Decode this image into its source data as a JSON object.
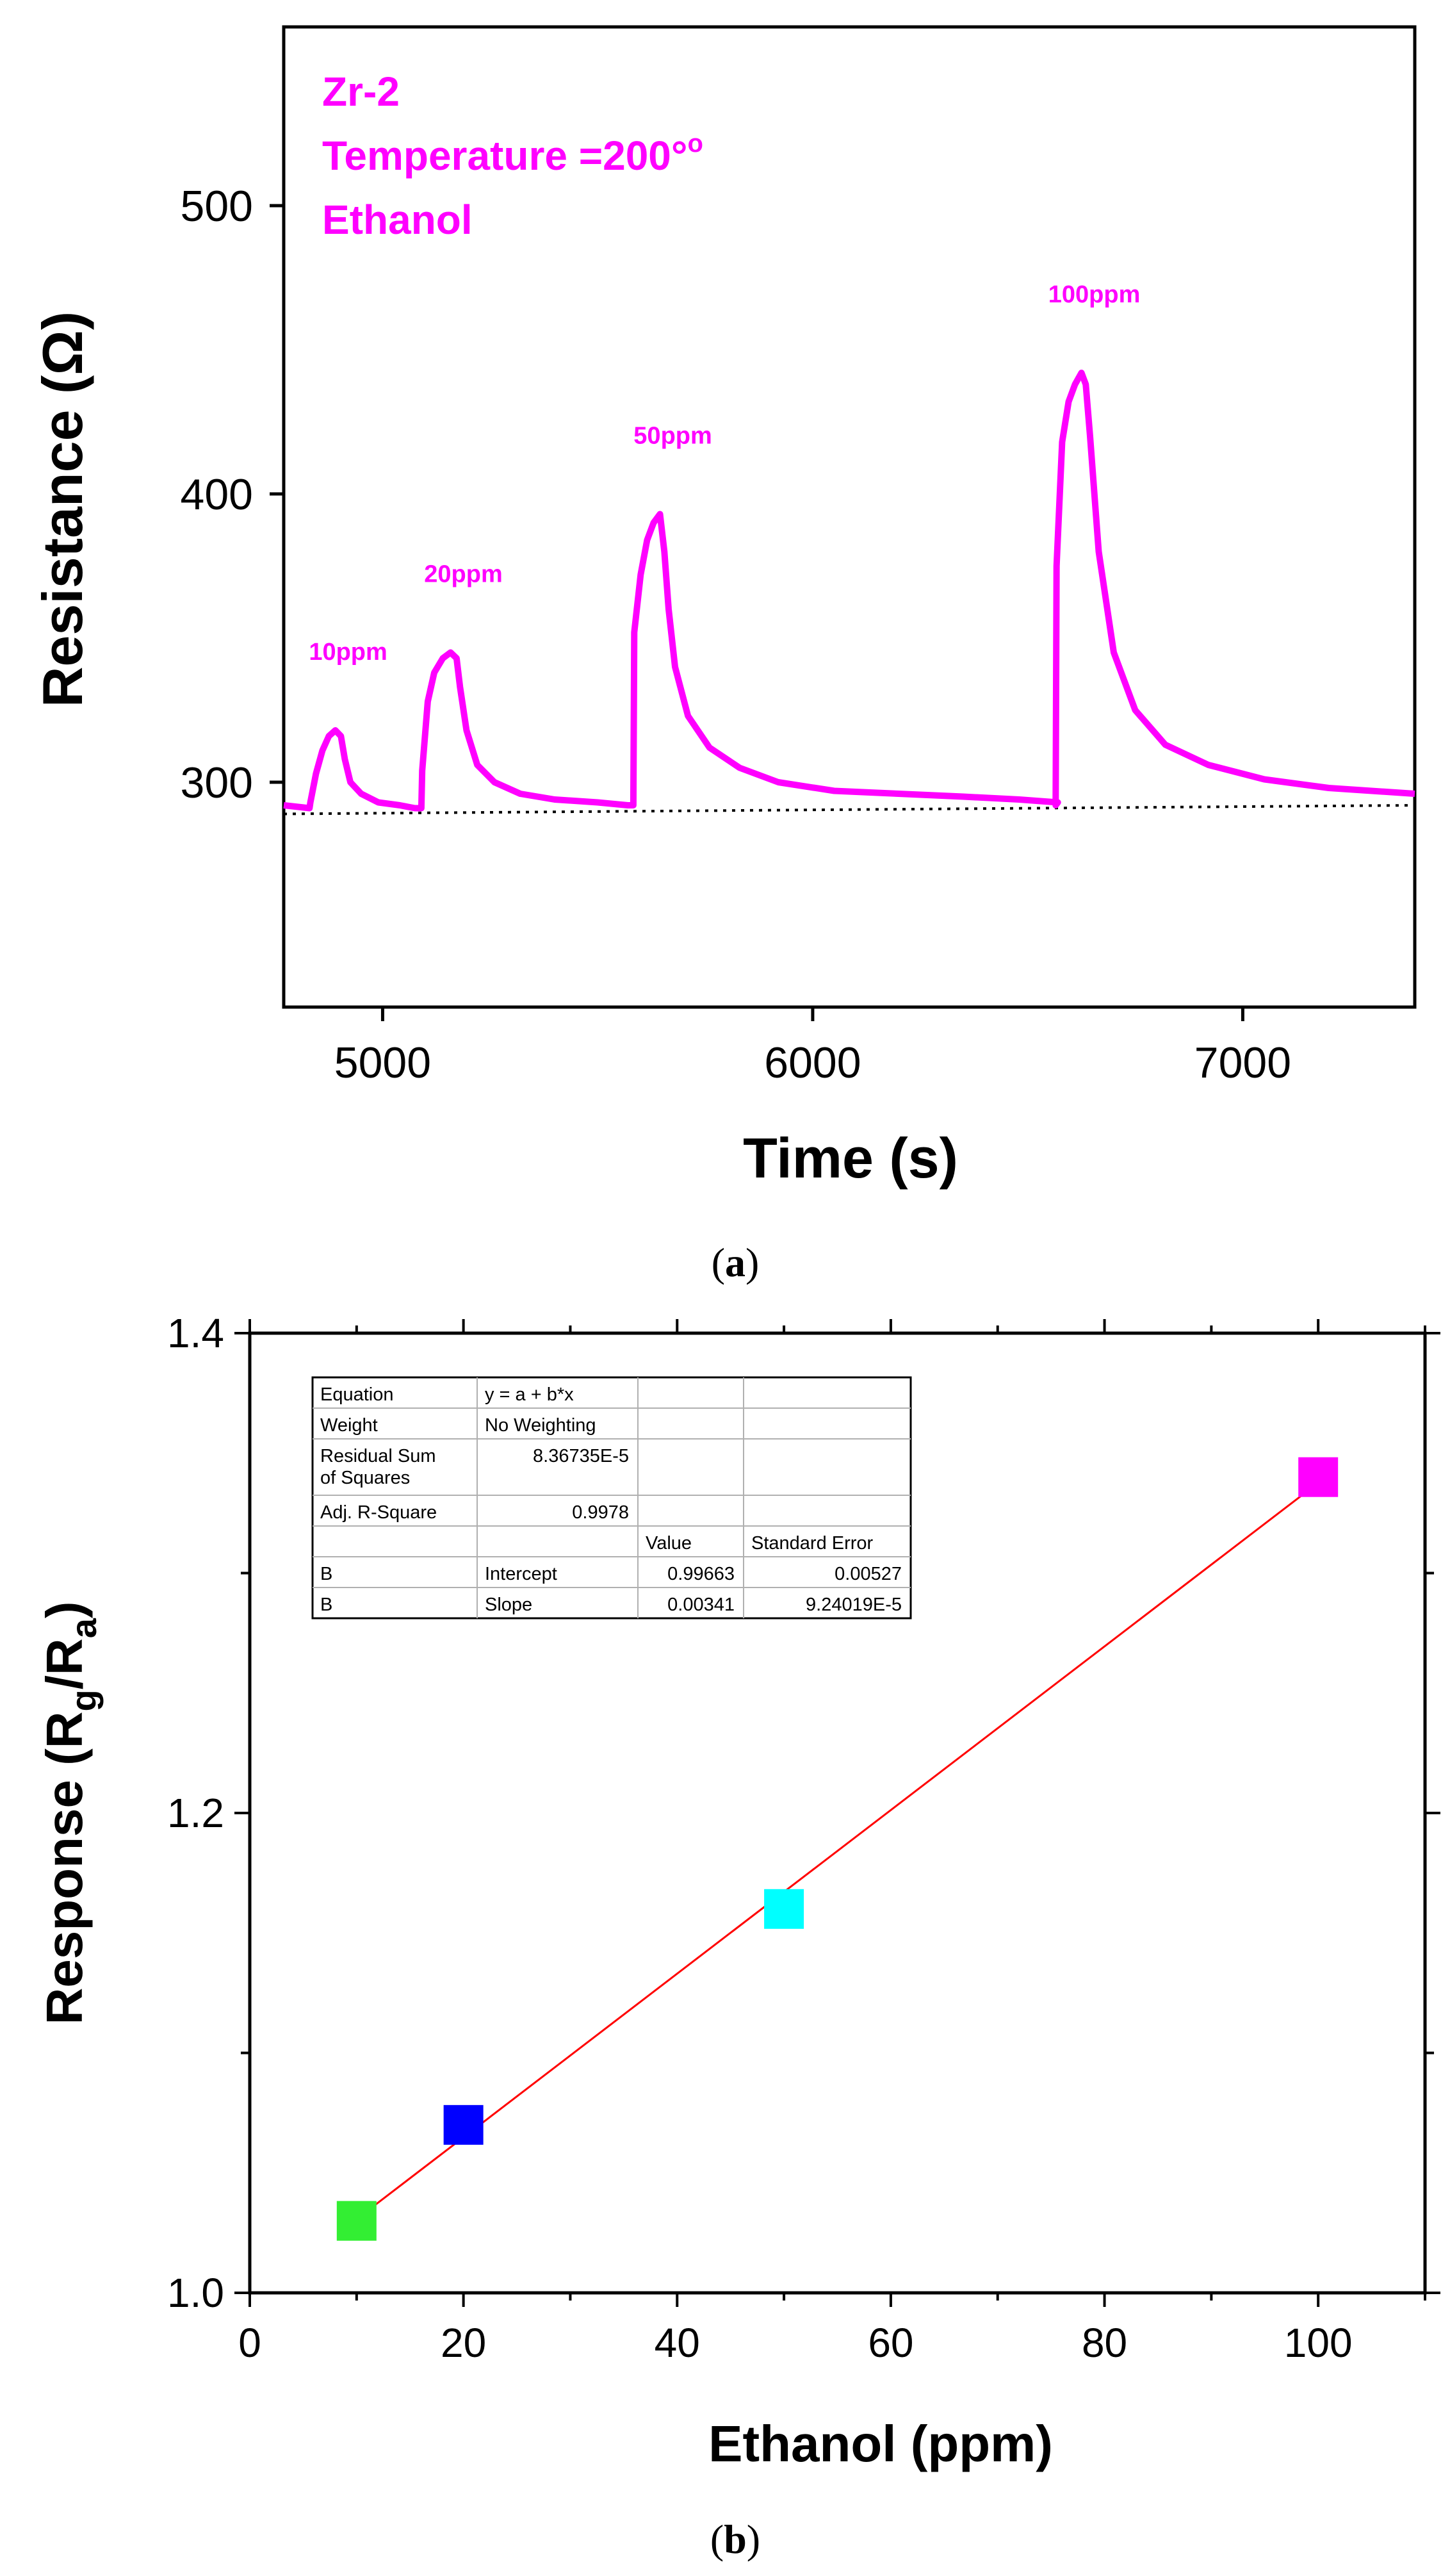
{
  "chart_data": [
    {
      "type": "line",
      "panel_label": "a",
      "title": "",
      "xlabel": "Time (s)",
      "ylabel": "Resistance (Ω)",
      "xlim": [
        4770,
        7400
      ],
      "ylim": [
        222,
        562
      ],
      "xticks": [
        5000,
        6000,
        7000
      ],
      "yticks": [
        300,
        400,
        500
      ],
      "annotations": [
        "Zr-2",
        "Temperature =200°",
        "Ethanol"
      ],
      "temperature_sup": "o",
      "grid": false,
      "series": [
        {
          "name": "Zr-2 Ethanol response",
          "color": "#ff00ff",
          "x": [
            4770,
            4830,
            4832,
            4845,
            4860,
            4875,
            4890,
            4903,
            4912,
            4925,
            4950,
            4990,
            5040,
            5075,
            5090,
            5092,
            5105,
            5120,
            5140,
            5158,
            5172,
            5180,
            5195,
            5220,
            5260,
            5320,
            5400,
            5500,
            5570,
            5583,
            5585,
            5600,
            5615,
            5630,
            5645,
            5655,
            5665,
            5680,
            5710,
            5760,
            5830,
            5920,
            6050,
            6200,
            6350,
            6480,
            6570,
            6565,
            6567,
            6580,
            6595,
            6610,
            6625,
            6635,
            6645,
            6665,
            6700,
            6750,
            6820,
            6920,
            7050,
            7200,
            7400
          ],
          "values": [
            292,
            291,
            293,
            303,
            311,
            316,
            318,
            316,
            308,
            300,
            296,
            293,
            292,
            291,
            291,
            304,
            328,
            338,
            343,
            345,
            343,
            333,
            318,
            306,
            300,
            296,
            294,
            293,
            292,
            292,
            352,
            372,
            384,
            390,
            393,
            380,
            360,
            340,
            323,
            312,
            305,
            300,
            297,
            296,
            295,
            294,
            293,
            292,
            375,
            418,
            432,
            438,
            442,
            438,
            420,
            380,
            345,
            325,
            313,
            306,
            301,
            298,
            296
          ]
        },
        {
          "name": "baseline",
          "style": "dotted",
          "color": "#000000",
          "x": [
            4770,
            7400
          ],
          "values": [
            289,
            292
          ]
        }
      ],
      "peak_labels": [
        {
          "text": "10ppm",
          "x": 4890,
          "y": 318
        },
        {
          "text": "20ppm",
          "x": 5158,
          "y": 345
        },
        {
          "text": "50ppm",
          "x": 5645,
          "y": 393
        },
        {
          "text": "100ppm",
          "x": 6625,
          "y": 442
        }
      ]
    },
    {
      "type": "scatter",
      "panel_label": "b",
      "title": "",
      "xlabel": "Ethanol (ppm)",
      "ylabel_parts": [
        "Response (R",
        "g",
        "/R",
        "a",
        ")"
      ],
      "xlim": [
        0,
        110
      ],
      "ylim": [
        1.0,
        1.4
      ],
      "xticks": [
        0,
        20,
        40,
        60,
        80,
        100
      ],
      "yticks_labeled": [
        1.0,
        1.2,
        1.4
      ],
      "yticks_unlabeled": [
        1.1,
        1.3
      ],
      "x_ticklabels": [
        "0",
        "20",
        "40",
        "60",
        "80",
        "100"
      ],
      "y_ticklabels": [
        "1.0",
        "1.2",
        "1.4"
      ],
      "grid": false,
      "points": [
        {
          "x": 10,
          "y": 1.03,
          "color": "#33ee33"
        },
        {
          "x": 20,
          "y": 1.07,
          "color": "#0000ff"
        },
        {
          "x": 50,
          "y": 1.16,
          "color": "#00ffff"
        },
        {
          "x": 100,
          "y": 1.34,
          "color": "#ff00ff"
        }
      ],
      "fit_line": {
        "intercept": 0.99663,
        "slope": 0.00341,
        "x_range": [
          10,
          100
        ],
        "color": "#ff0000"
      },
      "fit_table": [
        [
          "Equation",
          "y = a + b*x",
          "",
          ""
        ],
        [
          "Weight",
          "No Weighting",
          "",
          ""
        ],
        [
          "Residual Sum\nof Squares",
          "8.36735E-5",
          "",
          ""
        ],
        [
          "Adj. R-Square",
          "0.9978",
          "",
          ""
        ],
        [
          "",
          "",
          "Value",
          "Standard Error"
        ],
        [
          "B",
          "Intercept",
          "0.99663",
          "0.00527"
        ],
        [
          "B",
          "Slope",
          "0.00341",
          "9.24019E-5"
        ]
      ]
    }
  ]
}
